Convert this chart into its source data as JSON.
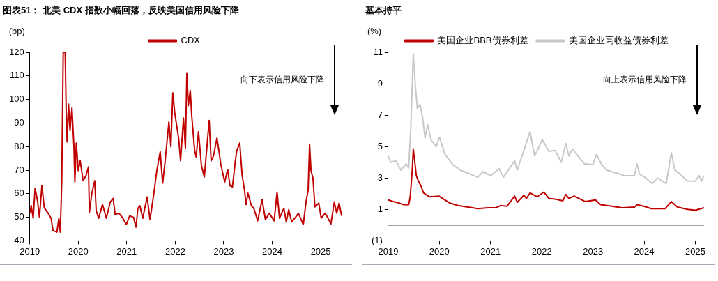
{
  "chart_data": [
    {
      "type": "line",
      "title": "图表51： 北美 CDX 指数小幅回落，反映美国信用风险下降",
      "ylabel": "(bp)",
      "marker": "none",
      "legend": "top",
      "xlim": [
        2019,
        2025.43
      ],
      "xticks": [
        2019,
        2020,
        2021,
        2022,
        2023,
        2024,
        2025
      ],
      "ylim": [
        40,
        120
      ],
      "yticks": [
        40,
        50,
        60,
        70,
        80,
        90,
        100,
        110,
        120
      ],
      "annotations": [
        "向下表示信用风险下降"
      ],
      "series": [
        {
          "name": "CDX",
          "color": "#c00000",
          "x": [
            2019.0,
            2019.03,
            2019.07,
            2019.11,
            2019.16,
            2019.2,
            2019.25,
            2019.3,
            2019.37,
            2019.44,
            2019.48,
            2019.56,
            2019.6,
            2019.63,
            2019.66,
            2019.69,
            2019.73,
            2019.75,
            2019.77,
            2019.8,
            2019.83,
            2019.87,
            2019.91,
            2019.93,
            2019.96,
            2020.0,
            2020.04,
            2020.1,
            2020.16,
            2020.21,
            2020.23,
            2020.28,
            2020.34,
            2020.37,
            2020.42,
            2020.5,
            2020.58,
            2020.66,
            2020.72,
            2020.76,
            2020.84,
            2020.92,
            2020.99,
            2021.06,
            2021.14,
            2021.19,
            2021.23,
            2021.27,
            2021.33,
            2021.42,
            2021.48,
            2021.56,
            2021.62,
            2021.69,
            2021.74,
            2021.79,
            2021.87,
            2021.91,
            2021.95,
            2021.99,
            2022.03,
            2022.07,
            2022.11,
            2022.17,
            2022.21,
            2022.24,
            2022.27,
            2022.31,
            2022.34,
            2022.4,
            2022.43,
            2022.48,
            2022.54,
            2022.6,
            2022.64,
            2022.7,
            2022.74,
            2022.79,
            2022.86,
            2022.9,
            2022.94,
            2023.02,
            2023.08,
            2023.13,
            2023.18,
            2023.24,
            2023.27,
            2023.33,
            2023.38,
            2023.43,
            2023.46,
            2023.5,
            2023.57,
            2023.62,
            2023.7,
            2023.79,
            2023.86,
            2023.94,
            2024.04,
            2024.1,
            2024.15,
            2024.24,
            2024.29,
            2024.34,
            2024.4,
            2024.48,
            2024.54,
            2024.64,
            2024.7,
            2024.74,
            2024.77,
            2024.8,
            2024.84,
            2024.88,
            2024.96,
            2025.01,
            2025.09,
            2025.14,
            2025.21,
            2025.28,
            2025.33,
            2025.38,
            2025.43
          ],
          "values": [
            51.7,
            55,
            49.6,
            62.3,
            57,
            50,
            63.4,
            54,
            52,
            49.6,
            44.3,
            43.7,
            49.6,
            43.7,
            65.5,
            120,
            120,
            96.4,
            82,
            98,
            86.8,
            96.4,
            80.4,
            65,
            81.5,
            69.8,
            74,
            65.5,
            67.7,
            71.4,
            52.2,
            60.2,
            65.5,
            52.8,
            49.6,
            55.4,
            49.6,
            56.5,
            58,
            51.2,
            51.7,
            49.6,
            46.9,
            50.6,
            50,
            45.8,
            53.8,
            54.9,
            49.6,
            58.6,
            49,
            60.2,
            69.8,
            77.8,
            64.5,
            73.5,
            90.5,
            79.9,
            102.8,
            94.3,
            88.9,
            83.6,
            74,
            92.1,
            79.4,
            111.3,
            97.4,
            103.8,
            93.2,
            78.3,
            75.6,
            86.3,
            71.9,
            67.1,
            76.7,
            91.1,
            74,
            76.1,
            83.6,
            78.3,
            72.4,
            65,
            70.3,
            63.4,
            62.9,
            74,
            78.3,
            81.5,
            67.7,
            61.3,
            55.4,
            60.2,
            54.9,
            53.8,
            48.5,
            57.5,
            49,
            51.7,
            48.5,
            60.7,
            49.6,
            53.8,
            48,
            53.2,
            48,
            50,
            51.7,
            46.9,
            57,
            61.3,
            81,
            69.8,
            66.6,
            54.4,
            56,
            49.6,
            51.7,
            50,
            47.2,
            56.5,
            51.7,
            56,
            50.6
          ]
        }
      ]
    },
    {
      "type": "line",
      "title": "基本持平",
      "ylabel": "(%)",
      "marker": "none",
      "legend": "top",
      "xlim": [
        2019,
        2025.17
      ],
      "xticks": [
        2019,
        2020,
        2021,
        2022,
        2023,
        2024,
        2025
      ],
      "ylim": [
        -1,
        11
      ],
      "yticks": [
        {
          "value": -1,
          "label": "(1)"
        },
        1,
        3,
        5,
        7,
        9,
        11
      ],
      "ref_lines": [
        {
          "axis": "y",
          "value": 0,
          "color": "#000000"
        }
      ],
      "annotations": [
        "向上表示信用风险下降"
      ],
      "series": [
        {
          "name": "美国企业BBB债券利差",
          "color": "#c00000",
          "x": [
            2019.0,
            2019.1,
            2019.22,
            2019.3,
            2019.4,
            2019.43,
            2019.47,
            2019.49,
            2019.52,
            2019.55,
            2019.59,
            2019.64,
            2019.69,
            2019.81,
            2019.99,
            2020.11,
            2020.21,
            2020.36,
            2020.56,
            2020.75,
            2020.95,
            2021.1,
            2021.2,
            2021.32,
            2021.47,
            2021.52,
            2021.65,
            2021.7,
            2021.77,
            2021.91,
            2022.04,
            2022.14,
            2022.28,
            2022.41,
            2022.47,
            2022.53,
            2022.63,
            2022.85,
            2023.05,
            2023.15,
            2023.37,
            2023.57,
            2023.81,
            2023.86,
            2023.99,
            2024.14,
            2024.41,
            2024.53,
            2024.65,
            2024.85,
            2025.0,
            2025.17
          ],
          "values": [
            1.6,
            1.5,
            1.4,
            1.3,
            1.3,
            1.8,
            3.5,
            4.85,
            4.0,
            3.15,
            2.8,
            2.5,
            2.05,
            1.8,
            1.85,
            1.6,
            1.4,
            1.25,
            1.15,
            1.05,
            1.1,
            1.1,
            1.25,
            1.2,
            1.85,
            1.45,
            1.9,
            1.7,
            2.05,
            1.8,
            2.1,
            1.7,
            1.65,
            1.55,
            1.95,
            1.7,
            1.85,
            1.5,
            1.6,
            1.3,
            1.2,
            1.1,
            1.15,
            1.3,
            1.2,
            1.05,
            1.05,
            1.5,
            1.15,
            1.0,
            0.95,
            1.1
          ]
        },
        {
          "name": "美国企业高收益债券利差",
          "color": "#c8c8c8",
          "x": [
            2019.0,
            2019.05,
            2019.15,
            2019.25,
            2019.35,
            2019.4,
            2019.44,
            2019.49,
            2019.53,
            2019.57,
            2019.62,
            2019.67,
            2019.72,
            2019.77,
            2019.84,
            2019.94,
            2020.0,
            2020.11,
            2020.26,
            2020.41,
            2020.56,
            2020.75,
            2020.85,
            2021.0,
            2021.17,
            2021.25,
            2021.47,
            2021.52,
            2021.67,
            2021.77,
            2021.86,
            2022.01,
            2022.14,
            2022.26,
            2022.38,
            2022.47,
            2022.53,
            2022.6,
            2022.83,
            2023.0,
            2023.07,
            2023.17,
            2023.27,
            2023.47,
            2023.62,
            2023.81,
            2023.86,
            2023.91,
            2024.01,
            2024.16,
            2024.26,
            2024.43,
            2024.53,
            2024.6,
            2024.7,
            2024.85,
            2025.0,
            2025.07,
            2025.12,
            2025.17
          ],
          "values": [
            4.4,
            4.0,
            4.1,
            3.5,
            3.9,
            3.65,
            6.05,
            10.9,
            8.9,
            7.4,
            7.7,
            6.9,
            5.55,
            6.4,
            5.4,
            5.0,
            5.6,
            4.5,
            3.85,
            3.5,
            3.3,
            3.05,
            3.4,
            3.15,
            3.6,
            3.05,
            4.1,
            3.5,
            4.95,
            5.95,
            4.4,
            5.45,
            4.7,
            4.75,
            4.0,
            5.2,
            4.4,
            4.85,
            3.9,
            3.85,
            4.5,
            3.85,
            3.5,
            3.3,
            3.15,
            3.15,
            3.9,
            3.25,
            3.05,
            2.65,
            3.0,
            2.65,
            4.6,
            3.5,
            3.25,
            2.8,
            2.8,
            3.15,
            2.8,
            3.15
          ]
        }
      ]
    }
  ]
}
